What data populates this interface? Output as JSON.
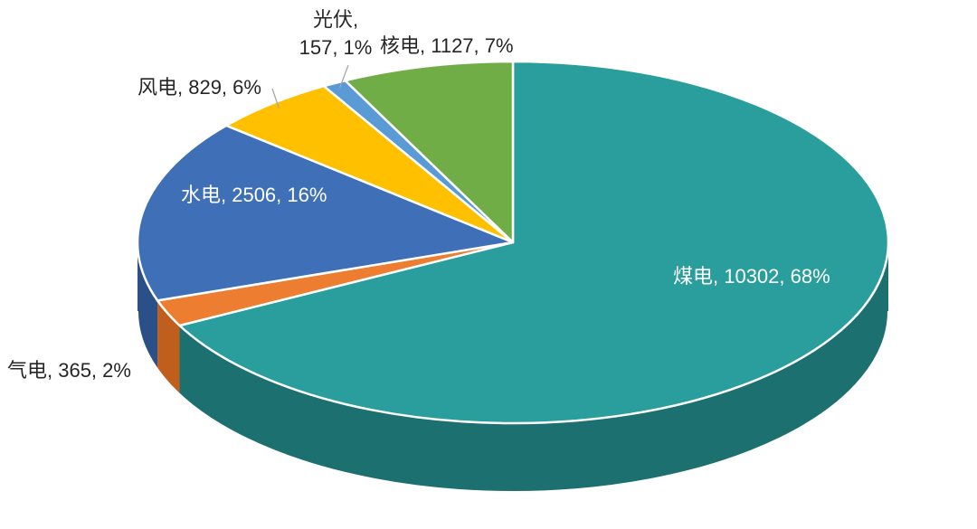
{
  "chart_data": {
    "type": "pie",
    "style": "pie-3d",
    "title": "",
    "legend": "none",
    "background": "#FFFFFF",
    "start_angle_deg": 0,
    "direction": "clockwise",
    "slice_border_color": "#FFFFFF",
    "leader_line_color": "#A6A6A6",
    "series": [
      {
        "name": "煤电",
        "value": 10302,
        "percent": 68,
        "color": "#2A9D9D",
        "side_color": "#1C7070"
      },
      {
        "name": "气电",
        "value": 365,
        "percent": 2,
        "color": "#ED7D31",
        "side_color": "#C05F1D"
      },
      {
        "name": "水电",
        "value": 2506,
        "percent": 16,
        "color": "#3E6FB7",
        "side_color": "#2B4F87"
      },
      {
        "name": "风电",
        "value": 829,
        "percent": 6,
        "color": "#FFC000",
        "side_color": "#BF9000"
      },
      {
        "name": "光伏",
        "value": 157,
        "percent": 1,
        "color": "#5B9BD5",
        "side_color": "#41719C"
      },
      {
        "name": "核电",
        "value": 1127,
        "percent": 7,
        "color": "#70AD47",
        "side_color": "#548235"
      }
    ],
    "labels": {
      "coal": "煤电, 10302, 68%",
      "gas": "气电, 365, 2%",
      "hydro": "水电, 2506, 16%",
      "wind": "风电, 829, 6%",
      "solar_line1": "光伏,",
      "solar_line2": "157, 1%",
      "nuclear": "核电, 1127, 7%"
    }
  }
}
